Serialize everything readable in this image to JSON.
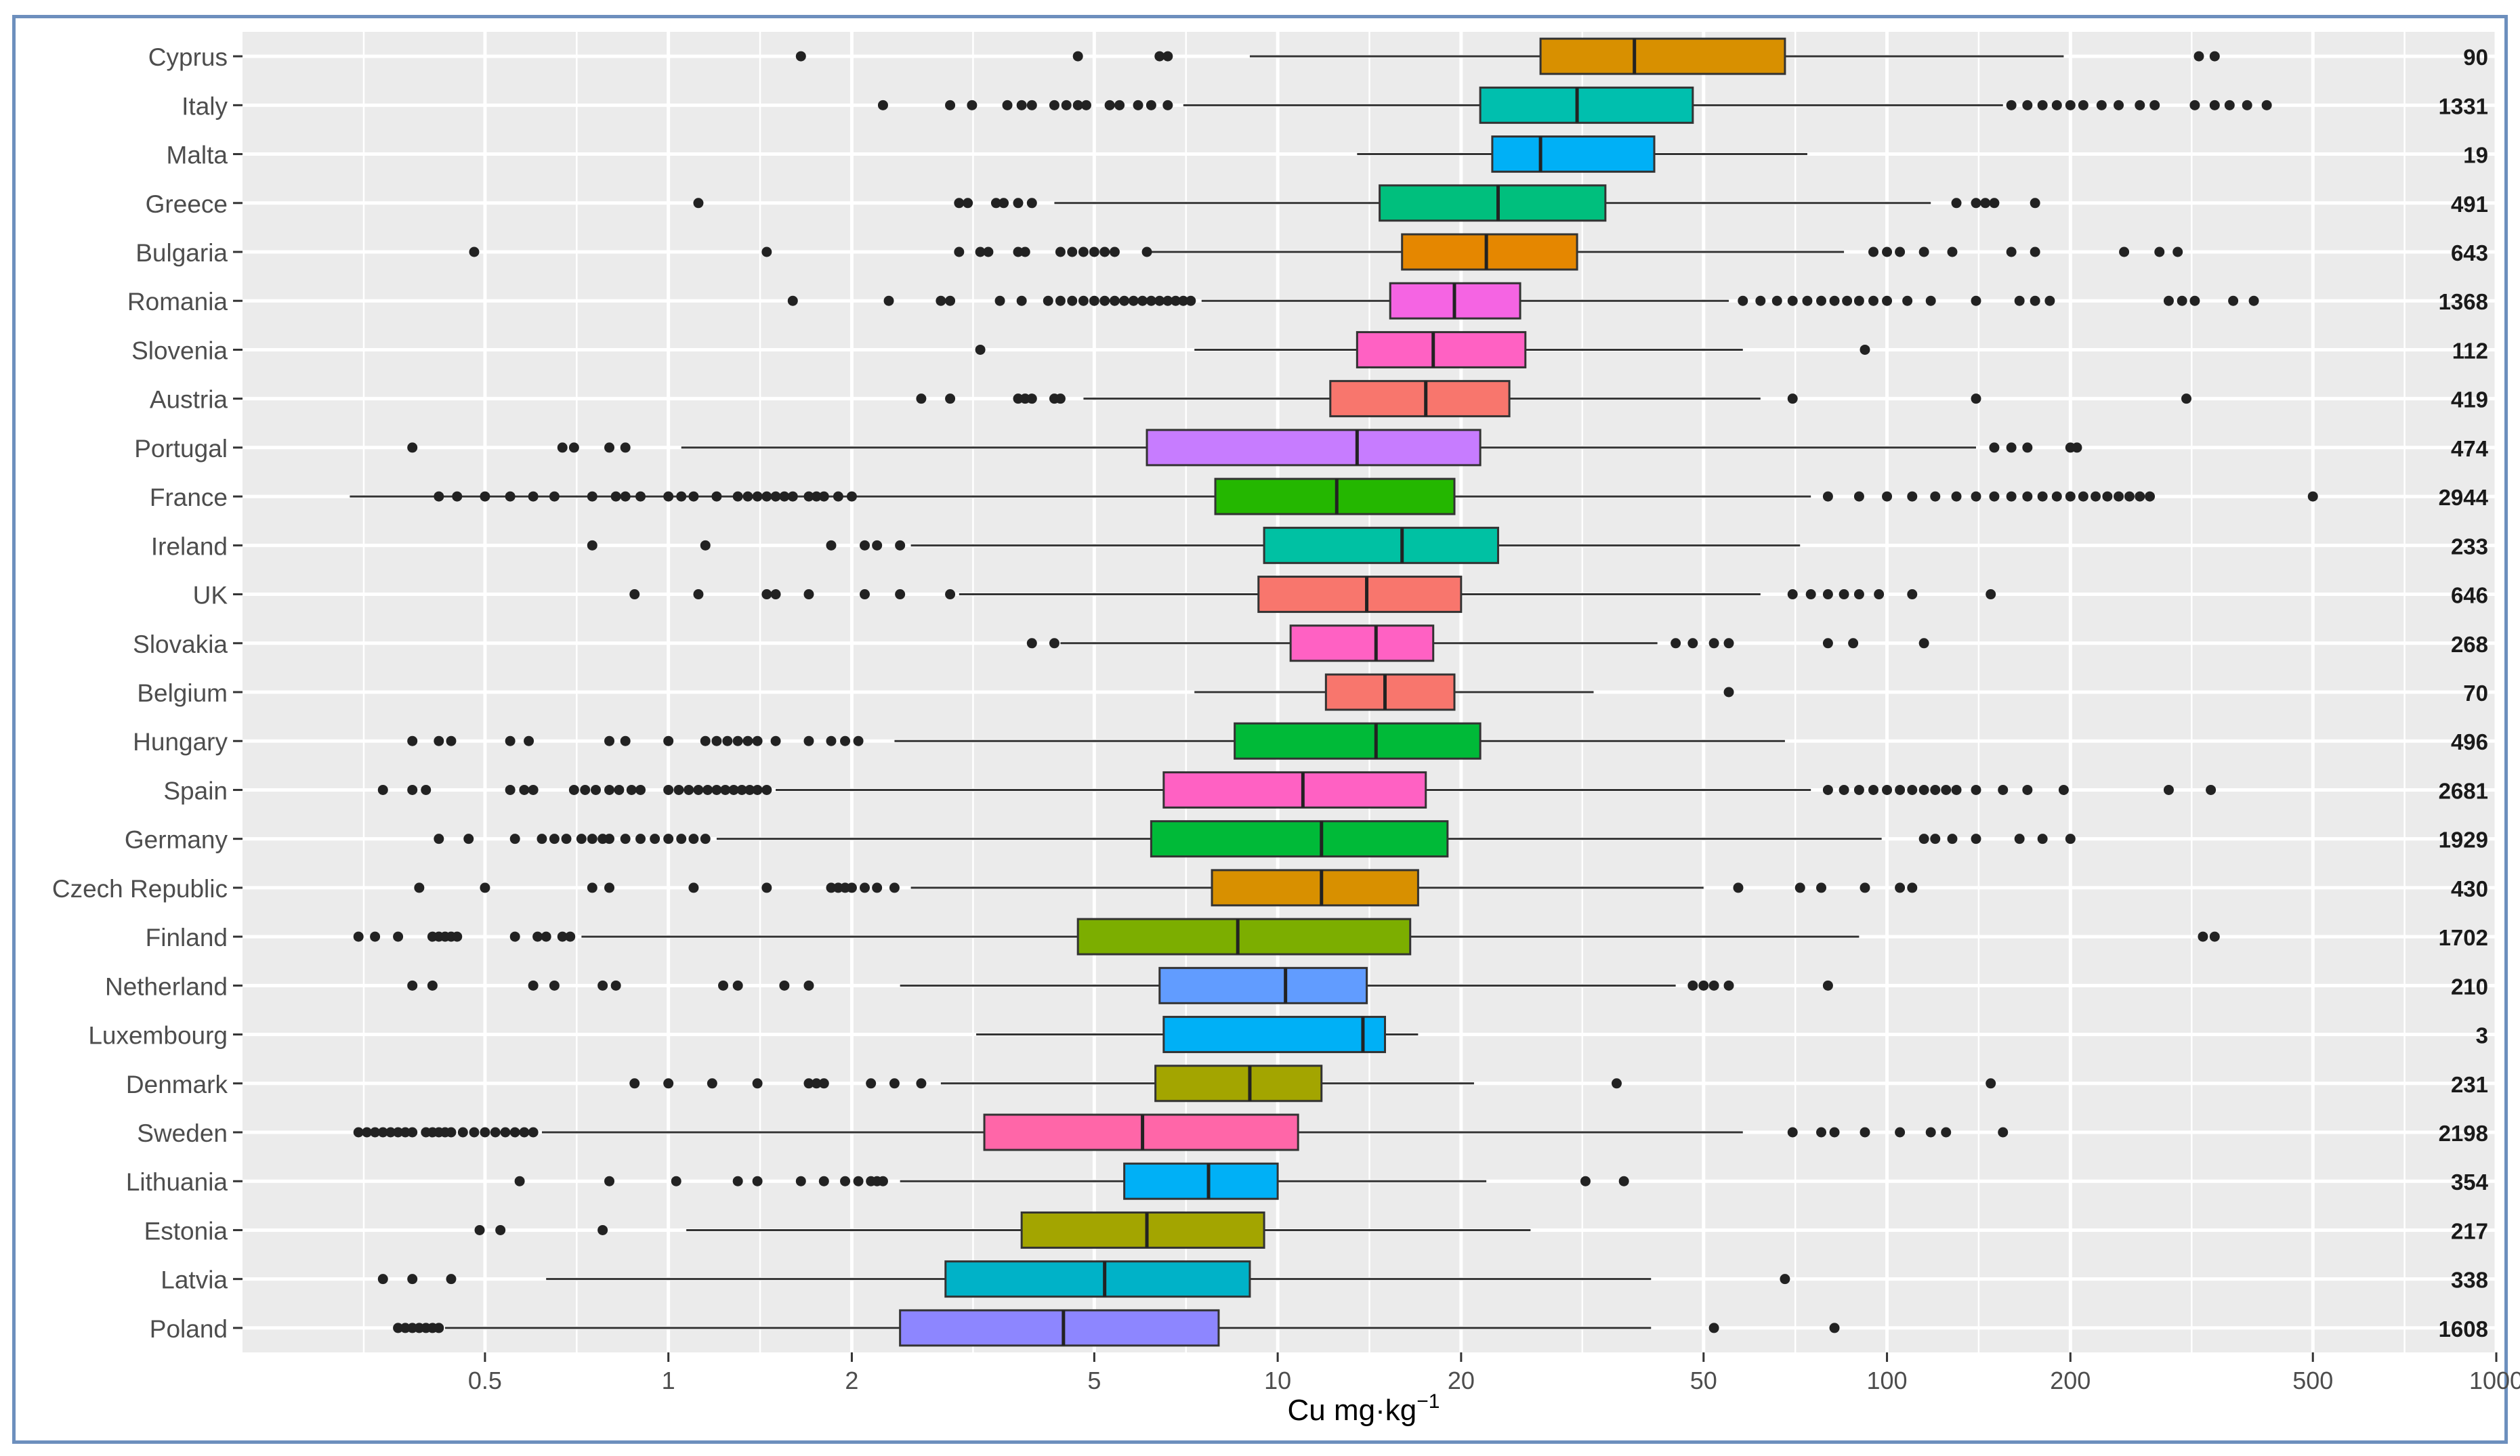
{
  "chart_data": {
    "type": "boxplot",
    "orientation": "horizontal",
    "xlabel": "Cu mg·kg",
    "xlabel_superscript": "−1",
    "xscale": "log10",
    "xlim": [
      0.2,
      1000
    ],
    "xticks": [
      0.5,
      1,
      2,
      5,
      10,
      20,
      50,
      100,
      200,
      500,
      1000
    ],
    "xtick_labels": [
      "0.5",
      "1",
      "2",
      "5",
      "10",
      "20",
      "50",
      "100",
      "200",
      "500",
      "1000"
    ],
    "grid": true,
    "legend": "none",
    "series": [
      {
        "country": "Cyprus",
        "n": "90",
        "color": "#D89000",
        "q1": 27.0,
        "median": 38.5,
        "q3": 68.0,
        "whisker_low": 9.0,
        "whisker_high": 195.0,
        "outliers": [
          1.65,
          4.7,
          6.4,
          6.6,
          325,
          345
        ]
      },
      {
        "country": "Italy",
        "n": "1331",
        "color": "#00BFAE",
        "q1": 21.5,
        "median": 31.0,
        "q3": 48.0,
        "whisker_low": 7.0,
        "whisker_high": 155.0,
        "outliers": [
          2.25,
          2.9,
          3.15,
          3.6,
          3.8,
          3.95,
          4.3,
          4.5,
          4.7,
          4.85,
          5.3,
          5.5,
          5.9,
          6.2,
          6.6,
          160,
          170,
          180,
          190,
          200,
          210,
          225,
          240,
          260,
          275,
          320,
          345,
          365,
          390,
          420
        ]
      },
      {
        "country": "Malta",
        "n": "19",
        "color": "#00B0F6",
        "q1": 22.5,
        "median": 27.0,
        "q3": 41.5,
        "whisker_low": 13.5,
        "whisker_high": 74.0,
        "outliers": []
      },
      {
        "country": "Greece",
        "n": "491",
        "color": "#00BF7D",
        "q1": 14.7,
        "median": 23.0,
        "q3": 34.5,
        "whisker_low": 4.3,
        "whisker_high": 118.0,
        "outliers": [
          1.12,
          3.0,
          3.1,
          3.45,
          3.55,
          3.75,
          3.95,
          130,
          140,
          145,
          150,
          175
        ]
      },
      {
        "country": "Bulgaria",
        "n": "643",
        "color": "#E58700",
        "q1": 16.0,
        "median": 22.0,
        "q3": 31.0,
        "whisker_low": 6.0,
        "whisker_high": 85.0,
        "outliers": [
          0.48,
          1.45,
          3.0,
          3.25,
          3.35,
          3.75,
          3.85,
          4.4,
          4.6,
          4.8,
          5.0,
          5.2,
          5.4,
          6.1,
          95,
          100,
          105,
          115,
          128,
          160,
          175,
          245,
          280,
          300
        ]
      },
      {
        "country": "Romania",
        "n": "1368",
        "color": "#F564E3",
        "q1": 15.3,
        "median": 19.5,
        "q3": 25.0,
        "whisker_low": 7.5,
        "whisker_high": 55.0,
        "outliers": [
          1.6,
          2.3,
          2.8,
          2.9,
          3.5,
          3.8,
          4.2,
          4.4,
          4.6,
          4.8,
          5.0,
          5.2,
          5.4,
          5.6,
          5.8,
          6.0,
          6.2,
          6.4,
          6.6,
          6.8,
          7.0,
          7.2,
          58,
          62,
          66,
          70,
          74,
          78,
          82,
          86,
          90,
          95,
          100,
          108,
          118,
          140,
          165,
          175,
          185,
          290,
          305,
          320,
          370,
          400
        ]
      },
      {
        "country": "Slovenia",
        "n": "112",
        "color": "#FF61C3",
        "q1": 13.5,
        "median": 18.0,
        "q3": 25.5,
        "whisker_low": 7.3,
        "whisker_high": 58.0,
        "outliers": [
          3.25,
          92
        ]
      },
      {
        "country": "Austria",
        "n": "419",
        "color": "#F8766D",
        "q1": 12.2,
        "median": 17.5,
        "q3": 24.0,
        "whisker_low": 4.8,
        "whisker_high": 62.0,
        "outliers": [
          2.6,
          2.9,
          3.75,
          3.85,
          3.95,
          4.3,
          4.4,
          70,
          140,
          310
        ]
      },
      {
        "country": "Portugal",
        "n": "474",
        "color": "#C77CFF",
        "q1": 6.1,
        "median": 13.5,
        "q3": 21.5,
        "whisker_low": 1.05,
        "whisker_high": 140.0,
        "outliers": [
          0.38,
          0.67,
          0.7,
          0.8,
          0.85,
          150,
          160,
          170,
          200,
          205
        ]
      },
      {
        "country": "France",
        "n": "2944",
        "color": "#24B700",
        "q1": 7.9,
        "median": 12.5,
        "q3": 19.5,
        "whisker_low": 0.3,
        "whisker_high": 75.0,
        "outliers": [
          0.42,
          0.45,
          0.5,
          0.55,
          0.6,
          0.65,
          0.75,
          0.82,
          0.85,
          0.9,
          1.0,
          1.05,
          1.1,
          1.2,
          1.3,
          1.35,
          1.4,
          1.45,
          1.5,
          1.55,
          1.6,
          1.7,
          1.75,
          1.8,
          1.9,
          2.0,
          80,
          90,
          100,
          110,
          120,
          130,
          140,
          150,
          160,
          170,
          180,
          190,
          200,
          210,
          220,
          230,
          240,
          250,
          260,
          270,
          500
        ]
      },
      {
        "country": "Ireland",
        "n": "233",
        "color": "#00C1A3",
        "q1": 9.5,
        "median": 16.0,
        "q3": 23.0,
        "whisker_low": 2.5,
        "whisker_high": 72.0,
        "outliers": [
          0.75,
          1.15,
          1.85,
          2.1,
          2.2,
          2.4
        ]
      },
      {
        "country": "UK",
        "n": "646",
        "color": "#F8766D",
        "q1": 9.3,
        "median": 14.0,
        "q3": 20.0,
        "whisker_low": 3.0,
        "whisker_high": 62.0,
        "outliers": [
          0.88,
          1.12,
          1.45,
          1.5,
          1.7,
          2.1,
          2.4,
          2.9,
          70,
          75,
          80,
          85,
          90,
          97,
          110,
          148
        ]
      },
      {
        "country": "Slovakia",
        "n": "268",
        "color": "#FF61C3",
        "q1": 10.5,
        "median": 14.5,
        "q3": 18.0,
        "whisker_low": 4.4,
        "whisker_high": 42.0,
        "outliers": [
          3.95,
          4.3,
          45,
          48,
          52,
          55,
          80,
          88,
          115
        ]
      },
      {
        "country": "Belgium",
        "n": "70",
        "color": "#F8766D",
        "q1": 12.0,
        "median": 15.0,
        "q3": 19.5,
        "whisker_low": 7.3,
        "whisker_high": 33.0,
        "outliers": [
          55
        ]
      },
      {
        "country": "Hungary",
        "n": "496",
        "color": "#00BA38",
        "q1": 8.5,
        "median": 14.5,
        "q3": 21.5,
        "whisker_low": 2.35,
        "whisker_high": 68.0,
        "outliers": [
          0.38,
          0.42,
          0.44,
          0.55,
          0.59,
          0.8,
          0.85,
          1.0,
          1.15,
          1.2,
          1.25,
          1.3,
          1.35,
          1.4,
          1.5,
          1.7,
          1.85,
          1.95,
          2.05
        ]
      },
      {
        "country": "Spain",
        "n": "2681",
        "color": "#FF61C3",
        "q1": 6.5,
        "median": 11.0,
        "q3": 17.5,
        "whisker_low": 1.5,
        "whisker_high": 75.0,
        "outliers": [
          0.34,
          0.38,
          0.4,
          0.55,
          0.58,
          0.6,
          0.7,
          0.73,
          0.76,
          0.8,
          0.83,
          0.87,
          0.9,
          1.0,
          1.04,
          1.08,
          1.12,
          1.16,
          1.2,
          1.24,
          1.28,
          1.32,
          1.36,
          1.4,
          1.45,
          80,
          85,
          90,
          95,
          100,
          105,
          110,
          115,
          120,
          125,
          130,
          140,
          155,
          170,
          195,
          290,
          340
        ]
      },
      {
        "country": "Germany",
        "n": "1929",
        "color": "#00BA38",
        "q1": 6.2,
        "median": 11.8,
        "q3": 19.0,
        "whisker_low": 1.2,
        "whisker_high": 98.0,
        "outliers": [
          0.42,
          0.47,
          0.56,
          0.62,
          0.65,
          0.68,
          0.72,
          0.75,
          0.78,
          0.8,
          0.85,
          0.9,
          0.95,
          1.0,
          1.05,
          1.1,
          1.15,
          115,
          120,
          128,
          140,
          165,
          180,
          200
        ]
      },
      {
        "country": "Czech Republic",
        "n": "430",
        "color": "#D89000",
        "q1": 7.8,
        "median": 11.8,
        "q3": 17.0,
        "whisker_low": 2.5,
        "whisker_high": 50.0,
        "outliers": [
          0.39,
          0.5,
          0.75,
          0.8,
          1.1,
          1.45,
          1.85,
          1.9,
          1.95,
          2.0,
          2.1,
          2.2,
          2.35,
          57,
          72,
          78,
          92,
          105,
          110
        ]
      },
      {
        "country": "Finland",
        "n": "1702",
        "color": "#7CAE00",
        "q1": 4.7,
        "median": 8.6,
        "q3": 16.5,
        "whisker_low": 0.72,
        "whisker_high": 90.0,
        "outliers": [
          0.31,
          0.33,
          0.36,
          0.41,
          0.42,
          0.43,
          0.44,
          0.45,
          0.56,
          0.61,
          0.63,
          0.67,
          0.69,
          330,
          345
        ]
      },
      {
        "country": "Netherland",
        "n": "210",
        "color": "#619CFF",
        "q1": 6.4,
        "median": 10.3,
        "q3": 14.0,
        "whisker_low": 2.4,
        "whisker_high": 45.0,
        "outliers": [
          0.38,
          0.41,
          0.6,
          0.65,
          0.78,
          0.82,
          1.23,
          1.3,
          1.55,
          1.7,
          48,
          50,
          52,
          55,
          80
        ]
      },
      {
        "country": "Luxembourg",
        "n": "3",
        "color": "#00B0F6",
        "q1": 6.5,
        "median": 13.8,
        "q3": 15.0,
        "whisker_low": 3.2,
        "whisker_high": 17.0,
        "outliers": []
      },
      {
        "country": "Denmark",
        "n": "231",
        "color": "#A3A500",
        "q1": 6.3,
        "median": 9.0,
        "q3": 11.8,
        "whisker_low": 2.8,
        "whisker_high": 21.0,
        "outliers": [
          0.88,
          1.0,
          1.18,
          1.4,
          1.7,
          1.75,
          1.8,
          2.15,
          2.35,
          2.6,
          36,
          148
        ]
      },
      {
        "country": "Sweden",
        "n": "2198",
        "color": "#FF66A8",
        "q1": 3.3,
        "median": 6.0,
        "q3": 10.8,
        "whisker_low": 0.62,
        "whisker_high": 58.0,
        "outliers": [
          0.31,
          0.32,
          0.33,
          0.34,
          0.35,
          0.36,
          0.37,
          0.38,
          0.4,
          0.41,
          0.42,
          0.43,
          0.44,
          0.46,
          0.48,
          0.5,
          0.52,
          0.54,
          0.56,
          0.58,
          0.6,
          70,
          78,
          82,
          92,
          105,
          118,
          125,
          155
        ]
      },
      {
        "country": "Lithuania",
        "n": "354",
        "color": "#00B0F6",
        "q1": 5.6,
        "median": 7.7,
        "q3": 10.0,
        "whisker_low": 2.4,
        "whisker_high": 22.0,
        "outliers": [
          0.57,
          0.8,
          1.03,
          1.3,
          1.4,
          1.65,
          1.8,
          1.95,
          2.05,
          2.15,
          2.2,
          2.25,
          32,
          37
        ]
      },
      {
        "country": "Estonia",
        "n": "217",
        "color": "#A3A500",
        "q1": 3.8,
        "median": 6.1,
        "q3": 9.5,
        "whisker_low": 1.07,
        "whisker_high": 26.0,
        "outliers": [
          0.49,
          0.53,
          0.78
        ]
      },
      {
        "country": "Latvia",
        "n": "338",
        "color": "#00B2C8",
        "q1": 2.85,
        "median": 5.2,
        "q3": 9.0,
        "whisker_low": 0.63,
        "whisker_high": 41.0,
        "outliers": [
          0.34,
          0.38,
          0.44,
          68
        ]
      },
      {
        "country": "Poland",
        "n": "1608",
        "color": "#8D86FF",
        "q1": 2.4,
        "median": 4.45,
        "q3": 8.0,
        "whisker_low": 0.43,
        "whisker_high": 41.0,
        "outliers": [
          0.36,
          0.37,
          0.38,
          0.39,
          0.4,
          0.41,
          0.42,
          52,
          82
        ]
      }
    ]
  }
}
